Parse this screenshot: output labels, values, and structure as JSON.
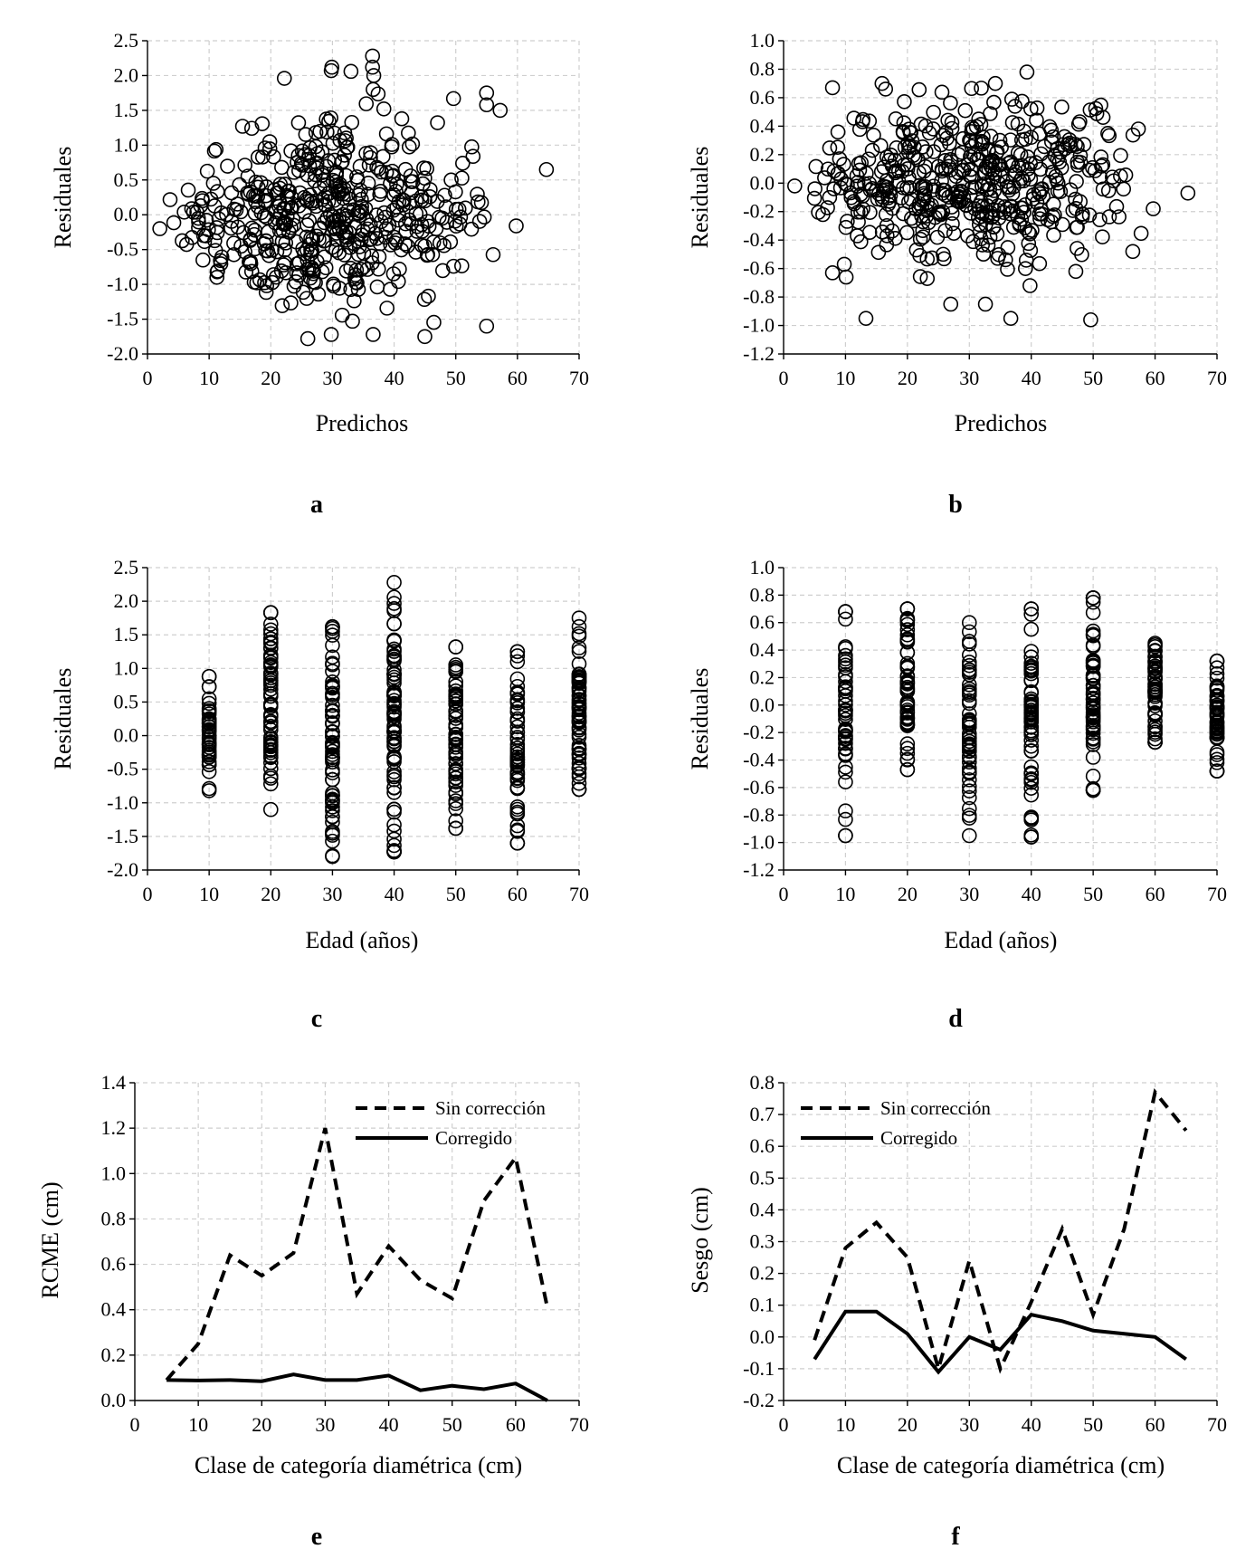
{
  "chart_data": [
    {
      "id": "a",
      "type": "scatter",
      "panel_label": "a",
      "xlabel": "Predichos",
      "ylabel": "Residuales",
      "xlim": [
        0,
        70
      ],
      "ylim": [
        -2.0,
        2.5
      ],
      "xstep": 10,
      "ystep": 0.5,
      "ytick_decimals": 1,
      "grid": true,
      "legend": [],
      "n_points": 520,
      "x_range": [
        2,
        65
      ],
      "y_range": [
        -1.8,
        2.3
      ],
      "points": [
        [
          64.7,
          0.65
        ],
        [
          59.8,
          -0.16
        ],
        [
          36.5,
          2.28
        ],
        [
          36.5,
          2.12
        ],
        [
          36.7,
          2.0
        ],
        [
          36.6,
          1.8
        ],
        [
          29.9,
          2.12
        ],
        [
          29.8,
          2.07
        ],
        [
          33.0,
          2.06
        ],
        [
          22.2,
          1.96
        ],
        [
          55.0,
          -1.6
        ],
        [
          26.0,
          -1.78
        ],
        [
          36.6,
          -1.72
        ],
        [
          29.8,
          -1.72
        ],
        [
          57.2,
          1.5
        ],
        [
          55.0,
          1.75
        ],
        [
          55.0,
          1.58
        ],
        [
          11.3,
          -0.82
        ],
        [
          9.0,
          -0.65
        ],
        [
          2.0,
          -0.2
        ]
      ]
    },
    {
      "id": "b",
      "type": "scatter",
      "panel_label": "b",
      "xlabel": "Predichos",
      "ylabel": "Residuales",
      "xlim": [
        0,
        70
      ],
      "ylim": [
        -1.2,
        1.0
      ],
      "xstep": 10,
      "ystep": 0.2,
      "ytick_decimals": 1,
      "grid": true,
      "legend": [],
      "n_points": 520,
      "x_range": [
        1.5,
        66
      ],
      "y_range": [
        -0.96,
        0.78
      ],
      "points": [
        [
          65.3,
          -0.07
        ],
        [
          59.7,
          -0.18
        ],
        [
          57.3,
          0.38
        ],
        [
          56.4,
          -0.48
        ],
        [
          49.6,
          -0.96
        ],
        [
          13.3,
          -0.95
        ],
        [
          36.7,
          -0.95
        ],
        [
          27.0,
          -0.85
        ],
        [
          32.6,
          -0.85
        ],
        [
          39.3,
          0.78
        ],
        [
          15.9,
          0.7
        ],
        [
          34.2,
          0.7
        ],
        [
          7.9,
          0.67
        ],
        [
          9.8,
          -0.57
        ],
        [
          10.1,
          -0.66
        ],
        [
          7.9,
          -0.63
        ],
        [
          23.2,
          -0.67
        ],
        [
          47.2,
          -0.62
        ],
        [
          39.8,
          -0.72
        ],
        [
          1.8,
          -0.02
        ]
      ]
    },
    {
      "id": "c",
      "type": "scatter",
      "panel_label": "c",
      "xlabel": "Edad (años)",
      "ylabel": "Residuales",
      "xlim": [
        0,
        70
      ],
      "ylim": [
        -2.0,
        2.5
      ],
      "xstep": 10,
      "ystep": 0.5,
      "ytick_decimals": 1,
      "grid": true,
      "legend": [],
      "groups": [
        {
          "x": 10,
          "min": -0.82,
          "max": 0.88,
          "n": 40
        },
        {
          "x": 20,
          "min": -1.1,
          "max": 1.83,
          "n": 60
        },
        {
          "x": 30,
          "min": -1.8,
          "max": 1.62,
          "n": 70
        },
        {
          "x": 40,
          "min": -1.73,
          "max": 2.28,
          "n": 80
        },
        {
          "x": 50,
          "min": -1.38,
          "max": 1.32,
          "n": 60
        },
        {
          "x": 60,
          "min": -1.6,
          "max": 1.25,
          "n": 55
        },
        {
          "x": 70,
          "min": -0.8,
          "max": 1.75,
          "n": 65
        }
      ]
    },
    {
      "id": "d",
      "type": "scatter",
      "panel_label": "d",
      "xlabel": "Edad (años)",
      "ylabel": "Residuales",
      "xlim": [
        0,
        70
      ],
      "ylim": [
        -1.2,
        1.0
      ],
      "xstep": 10,
      "ystep": 0.2,
      "ytick_decimals": 1,
      "grid": true,
      "legend": [],
      "groups": [
        {
          "x": 10,
          "min": -0.95,
          "max": 0.68,
          "n": 45
        },
        {
          "x": 20,
          "min": -0.47,
          "max": 0.7,
          "n": 55
        },
        {
          "x": 30,
          "min": -0.95,
          "max": 0.6,
          "n": 55
        },
        {
          "x": 40,
          "min": -0.96,
          "max": 0.7,
          "n": 60
        },
        {
          "x": 50,
          "min": -0.62,
          "max": 0.78,
          "n": 65
        },
        {
          "x": 60,
          "min": -0.27,
          "max": 0.45,
          "n": 50
        },
        {
          "x": 70,
          "min": -0.48,
          "max": 0.32,
          "n": 55
        }
      ]
    },
    {
      "id": "e",
      "type": "line",
      "panel_label": "e",
      "xlabel": "Clase de categoría diamétrica (cm)",
      "ylabel": "RCME (cm)",
      "xlim": [
        0,
        70
      ],
      "ylim": [
        0,
        1.4
      ],
      "xstep": 10,
      "ystep": 0.2,
      "ytick_decimals": 1,
      "grid": true,
      "legend_position": "top-right",
      "series": [
        {
          "name": "Sin corrección",
          "style": "dashed",
          "x": [
            5,
            10,
            15,
            20,
            25,
            30,
            35,
            40,
            45,
            50,
            55,
            60,
            65
          ],
          "y": [
            0.09,
            0.25,
            0.64,
            0.55,
            0.65,
            1.2,
            0.47,
            0.68,
            0.53,
            0.45,
            0.88,
            1.07,
            0.41
          ]
        },
        {
          "name": "Corregido",
          "style": "solid",
          "x": [
            5,
            10,
            15,
            20,
            25,
            30,
            35,
            40,
            45,
            50,
            55,
            60,
            65
          ],
          "y": [
            0.09,
            0.088,
            0.09,
            0.085,
            0.115,
            0.09,
            0.09,
            0.11,
            0.045,
            0.065,
            0.05,
            0.075,
            0.0
          ]
        }
      ]
    },
    {
      "id": "f",
      "type": "line",
      "panel_label": "f",
      "xlabel": "Clase de categoría diamétrica (cm)",
      "ylabel": "Sesgo (cm)",
      "xlim": [
        0,
        70
      ],
      "ylim": [
        -0.2,
        0.8
      ],
      "xstep": 10,
      "ystep": 0.1,
      "ytick_decimals": 1,
      "grid": true,
      "legend_position": "top-left",
      "series": [
        {
          "name": "Sin corrección",
          "style": "dashed",
          "x": [
            5,
            10,
            15,
            20,
            25,
            30,
            35,
            40,
            45,
            50,
            55,
            60,
            65
          ],
          "y": [
            -0.01,
            0.28,
            0.36,
            0.25,
            -0.1,
            0.24,
            -0.1,
            0.11,
            0.34,
            0.07,
            0.34,
            0.77,
            0.65
          ]
        },
        {
          "name": "Corregido",
          "style": "solid",
          "x": [
            5,
            10,
            15,
            20,
            25,
            30,
            35,
            40,
            45,
            50,
            55,
            60,
            65
          ],
          "y": [
            -0.07,
            0.08,
            0.08,
            0.01,
            -0.11,
            0.0,
            -0.04,
            0.07,
            0.05,
            0.02,
            0.01,
            0.0,
            -0.07
          ]
        }
      ]
    }
  ]
}
